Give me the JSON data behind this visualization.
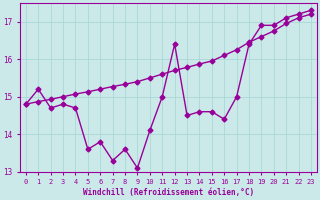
{
  "xlabel": "Windchill (Refroidissement éolien,°C)",
  "bg_color": "#cbe9e9",
  "line_color": "#990099",
  "x_data": [
    0,
    1,
    2,
    3,
    4,
    5,
    6,
    7,
    8,
    9,
    10,
    11,
    12,
    13,
    14,
    15,
    16,
    17,
    18,
    19,
    20,
    21,
    22,
    23
  ],
  "y_main": [
    14.8,
    15.2,
    14.7,
    14.8,
    14.7,
    13.6,
    13.8,
    13.3,
    13.6,
    13.1,
    14.1,
    15.0,
    16.4,
    14.5,
    14.6,
    14.6,
    14.4,
    15.0,
    16.4,
    16.9,
    16.9,
    17.1,
    17.2,
    17.3
  ],
  "y_trend": [
    14.8,
    14.87,
    14.93,
    15.0,
    15.07,
    15.13,
    15.2,
    15.27,
    15.33,
    15.4,
    15.5,
    15.6,
    15.7,
    15.78,
    15.87,
    15.95,
    16.1,
    16.25,
    16.45,
    16.6,
    16.75,
    16.95,
    17.1,
    17.2
  ],
  "xlim": [
    -0.5,
    23.5
  ],
  "ylim": [
    13.0,
    17.5
  ],
  "yticks": [
    13,
    14,
    15,
    16,
    17
  ],
  "xticks": [
    0,
    1,
    2,
    3,
    4,
    5,
    6,
    7,
    8,
    9,
    10,
    11,
    12,
    13,
    14,
    15,
    16,
    17,
    18,
    19,
    20,
    21,
    22,
    23
  ],
  "grid_color": "#aad8d8",
  "marker": "D",
  "marker_size": 2.5,
  "line_width": 1.0
}
